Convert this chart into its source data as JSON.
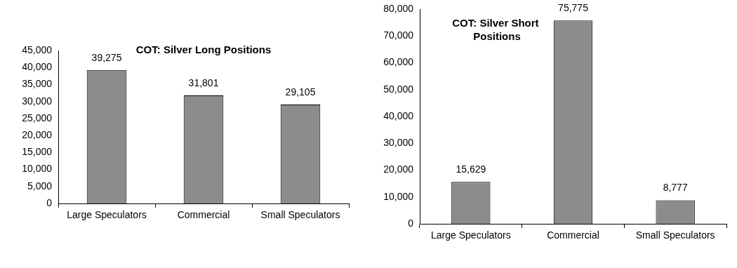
{
  "chart_data": [
    {
      "type": "bar",
      "title": "COT: Silver Long Positions",
      "categories": [
        "Large Speculators",
        "Commercial",
        "Small Speculators"
      ],
      "values": [
        39275,
        31801,
        29105
      ],
      "value_labels": [
        "39,275",
        "31,801",
        "29,105"
      ],
      "color": "#8c8c8c",
      "ylim": [
        0,
        45000
      ],
      "yticks": [
        {
          "value": 0,
          "label": "0"
        },
        {
          "value": 5000,
          "label": "5,000"
        },
        {
          "value": 10000,
          "label": "10,000"
        },
        {
          "value": 15000,
          "label": "15,000"
        },
        {
          "value": 20000,
          "label": "20,000"
        },
        {
          "value": 25000,
          "label": "25,000"
        },
        {
          "value": 30000,
          "label": "30,000"
        },
        {
          "value": 35000,
          "label": "35,000"
        },
        {
          "value": 40000,
          "label": "40,000"
        },
        {
          "value": 45000,
          "label": "45,000"
        }
      ],
      "grid": false
    },
    {
      "type": "bar",
      "title": "COT: Silver Short  Positions",
      "categories": [
        "Large Speculators",
        "Commercial",
        "Small Speculators"
      ],
      "values": [
        15629,
        75775,
        8777
      ],
      "value_labels": [
        "15,629",
        "75,775",
        "8,777"
      ],
      "color": "#8c8c8c",
      "ylim": [
        0,
        80000
      ],
      "yticks": [
        {
          "value": 0,
          "label": "0"
        },
        {
          "value": 10000,
          "label": "10,000"
        },
        {
          "value": 20000,
          "label": "20,000"
        },
        {
          "value": 30000,
          "label": "30,000"
        },
        {
          "value": 40000,
          "label": "40,000"
        },
        {
          "value": 50000,
          "label": "50,000"
        },
        {
          "value": 60000,
          "label": "60,000"
        },
        {
          "value": 70000,
          "label": "70,000"
        },
        {
          "value": 80000,
          "label": "80,000"
        }
      ],
      "grid": false
    }
  ]
}
